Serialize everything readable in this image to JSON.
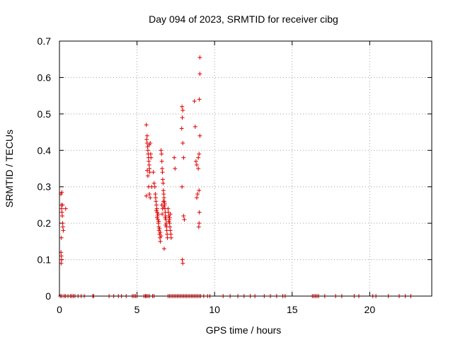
{
  "chart_data": {
    "type": "scatter",
    "title": "Day 094 of 2023, SRMTID for receiver cibg",
    "xlabel": "GPS time / hours",
    "ylabel": "SRMTID / TECUs",
    "xlim": [
      0,
      24
    ],
    "ylim": [
      0,
      0.7
    ],
    "xticks": [
      0,
      5,
      10,
      15,
      20
    ],
    "yticks": [
      0,
      0.1,
      0.2,
      0.3,
      0.4,
      0.5,
      0.6,
      0.7
    ],
    "xtick_labels": [
      "0",
      "5",
      "10",
      "15",
      "20"
    ],
    "ytick_labels": [
      "0",
      "0.1",
      "0.2",
      "0.3",
      "0.4",
      "0.5",
      "0.6",
      "0.7"
    ],
    "grid": true,
    "marker": "+",
    "color": "#dd0000",
    "series": [
      {
        "name": "SRMTID",
        "points": [
          [
            0.1,
            0.28
          ],
          [
            0.12,
            0.25
          ],
          [
            0.14,
            0.24
          ],
          [
            0.16,
            0.23
          ],
          [
            0.18,
            0.22
          ],
          [
            0.2,
            0.2
          ],
          [
            0.22,
            0.19
          ],
          [
            0.25,
            0.18
          ],
          [
            0.12,
            0.16
          ],
          [
            0.1,
            0.12
          ],
          [
            0.12,
            0.11
          ],
          [
            0.14,
            0.1
          ],
          [
            0.11,
            0.09
          ],
          [
            0.15,
            0.285
          ],
          [
            0.4,
            0.24
          ],
          [
            0.2,
            0.25
          ],
          [
            5.6,
            0.47
          ],
          [
            5.62,
            0.43
          ],
          [
            5.65,
            0.42
          ],
          [
            5.68,
            0.41
          ],
          [
            5.7,
            0.4
          ],
          [
            5.72,
            0.39
          ],
          [
            5.74,
            0.38
          ],
          [
            5.76,
            0.37
          ],
          [
            5.78,
            0.36
          ],
          [
            5.8,
            0.35
          ],
          [
            5.82,
            0.34
          ],
          [
            5.7,
            0.33
          ],
          [
            5.65,
            0.44
          ],
          [
            5.85,
            0.42
          ],
          [
            5.88,
            0.39
          ],
          [
            5.9,
            0.38
          ],
          [
            5.75,
            0.3
          ],
          [
            5.8,
            0.28
          ],
          [
            5.85,
            0.27
          ],
          [
            5.6,
            0.275
          ],
          [
            5.95,
            0.3
          ],
          [
            5.66,
            0.345
          ],
          [
            5.78,
            0.415
          ],
          [
            6.05,
            0.34
          ],
          [
            6.1,
            0.31
          ],
          [
            6.15,
            0.3
          ],
          [
            6.18,
            0.28
          ],
          [
            6.2,
            0.27
          ],
          [
            6.22,
            0.26
          ],
          [
            6.25,
            0.25
          ],
          [
            6.28,
            0.24
          ],
          [
            6.3,
            0.23
          ],
          [
            6.32,
            0.22
          ],
          [
            6.35,
            0.21
          ],
          [
            6.38,
            0.2
          ],
          [
            6.4,
            0.19
          ],
          [
            6.42,
            0.18
          ],
          [
            6.45,
            0.17
          ],
          [
            6.48,
            0.16
          ],
          [
            6.5,
            0.15
          ],
          [
            6.25,
            0.235
          ],
          [
            6.3,
            0.215
          ],
          [
            6.35,
            0.225
          ],
          [
            6.4,
            0.205
          ],
          [
            6.45,
            0.185
          ],
          [
            6.5,
            0.175
          ],
          [
            6.55,
            0.165
          ],
          [
            6.55,
            0.4
          ],
          [
            6.58,
            0.39
          ],
          [
            6.6,
            0.37
          ],
          [
            6.62,
            0.35
          ],
          [
            6.64,
            0.34
          ],
          [
            6.66,
            0.32
          ],
          [
            6.68,
            0.31
          ],
          [
            6.7,
            0.29
          ],
          [
            6.72,
            0.28
          ],
          [
            6.74,
            0.27
          ],
          [
            6.76,
            0.26
          ],
          [
            6.78,
            0.25
          ],
          [
            6.8,
            0.24
          ],
          [
            6.82,
            0.23
          ],
          [
            6.84,
            0.22
          ],
          [
            6.86,
            0.21
          ],
          [
            6.88,
            0.2
          ],
          [
            6.9,
            0.19
          ],
          [
            6.92,
            0.18
          ],
          [
            6.94,
            0.17
          ],
          [
            6.96,
            0.16
          ],
          [
            6.75,
            0.13
          ],
          [
            6.6,
            0.25
          ],
          [
            6.65,
            0.24
          ],
          [
            6.7,
            0.26
          ],
          [
            6.72,
            0.245
          ],
          [
            6.78,
            0.255
          ],
          [
            6.82,
            0.215
          ],
          [
            6.85,
            0.195
          ],
          [
            6.62,
            0.225
          ],
          [
            7.0,
            0.24
          ],
          [
            7.02,
            0.23
          ],
          [
            7.05,
            0.22
          ],
          [
            7.08,
            0.21
          ],
          [
            7.1,
            0.2
          ],
          [
            7.12,
            0.19
          ],
          [
            7.15,
            0.18
          ],
          [
            7.18,
            0.17
          ],
          [
            7.2,
            0.16
          ],
          [
            7.05,
            0.205
          ],
          [
            7.1,
            0.215
          ],
          [
            7.15,
            0.225
          ],
          [
            7.4,
            0.38
          ],
          [
            7.45,
            0.35
          ],
          [
            7.9,
            0.52
          ],
          [
            7.95,
            0.51
          ],
          [
            7.92,
            0.49
          ],
          [
            7.88,
            0.46
          ],
          [
            7.95,
            0.42
          ],
          [
            8.0,
            0.38
          ],
          [
            7.9,
            0.3
          ],
          [
            8.0,
            0.22
          ],
          [
            8.05,
            0.21
          ],
          [
            7.92,
            0.1
          ],
          [
            7.95,
            0.09
          ],
          [
            8.7,
            0.535
          ],
          [
            8.75,
            0.465
          ],
          [
            8.8,
            0.37
          ],
          [
            8.85,
            0.36
          ],
          [
            8.9,
            0.28
          ],
          [
            8.85,
            0.27
          ],
          [
            8.95,
            0.35
          ],
          [
            8.95,
            0.38
          ],
          [
            9.0,
            0.39
          ],
          [
            9.05,
            0.44
          ],
          [
            9.02,
            0.54
          ],
          [
            9.05,
            0.61
          ],
          [
            9.05,
            0.655
          ],
          [
            9.0,
            0.29
          ],
          [
            9.02,
            0.23
          ],
          [
            9.0,
            0.2
          ],
          [
            8.98,
            0.19
          ],
          [
            0.05,
            0
          ],
          [
            0.15,
            0
          ],
          [
            0.3,
            0
          ],
          [
            0.4,
            0
          ],
          [
            0.55,
            0
          ],
          [
            0.7,
            0
          ],
          [
            0.8,
            0
          ],
          [
            0.9,
            0
          ],
          [
            1.0,
            0
          ],
          [
            1.2,
            0
          ],
          [
            1.4,
            0
          ],
          [
            1.6,
            0
          ],
          [
            2.15,
            0
          ],
          [
            2.2,
            0
          ],
          [
            3.2,
            0
          ],
          [
            3.5,
            0
          ],
          [
            3.8,
            0
          ],
          [
            4.0,
            0
          ],
          [
            4.3,
            0
          ],
          [
            4.7,
            0
          ],
          [
            4.8,
            0
          ],
          [
            4.9,
            0
          ],
          [
            5.0,
            0
          ],
          [
            5.45,
            0
          ],
          [
            5.55,
            0
          ],
          [
            5.6,
            0
          ],
          [
            5.7,
            0
          ],
          [
            5.8,
            0
          ],
          [
            6.0,
            0
          ],
          [
            6.1,
            0
          ],
          [
            7.0,
            0
          ],
          [
            7.1,
            0
          ],
          [
            7.2,
            0
          ],
          [
            7.3,
            0
          ],
          [
            7.4,
            0
          ],
          [
            7.5,
            0
          ],
          [
            7.6,
            0
          ],
          [
            7.7,
            0
          ],
          [
            7.8,
            0
          ],
          [
            7.9,
            0
          ],
          [
            8.0,
            0
          ],
          [
            8.1,
            0
          ],
          [
            8.2,
            0
          ],
          [
            8.3,
            0
          ],
          [
            8.4,
            0
          ],
          [
            8.5,
            0
          ],
          [
            8.6,
            0
          ],
          [
            8.7,
            0
          ],
          [
            8.8,
            0
          ],
          [
            8.9,
            0
          ],
          [
            9.0,
            0
          ],
          [
            9.1,
            0
          ],
          [
            9.3,
            0
          ],
          [
            9.55,
            0
          ],
          [
            9.7,
            0
          ],
          [
            10.55,
            0
          ],
          [
            11.0,
            0
          ],
          [
            11.5,
            0
          ],
          [
            11.9,
            0
          ],
          [
            12.3,
            0
          ],
          [
            12.6,
            0
          ],
          [
            13.2,
            0
          ],
          [
            13.6,
            0
          ],
          [
            14.0,
            0
          ],
          [
            14.4,
            0
          ],
          [
            14.55,
            0
          ],
          [
            16.3,
            0
          ],
          [
            16.4,
            0
          ],
          [
            16.5,
            0
          ],
          [
            16.6,
            0
          ],
          [
            16.7,
            0
          ],
          [
            17.1,
            0
          ],
          [
            17.8,
            0
          ],
          [
            18.2,
            0
          ],
          [
            19.0,
            0
          ],
          [
            19.3,
            0
          ],
          [
            20.2,
            0
          ],
          [
            20.4,
            0
          ],
          [
            21.2,
            0
          ],
          [
            21.9,
            0
          ],
          [
            22.3,
            0
          ],
          [
            22.65,
            0
          ]
        ]
      }
    ]
  }
}
